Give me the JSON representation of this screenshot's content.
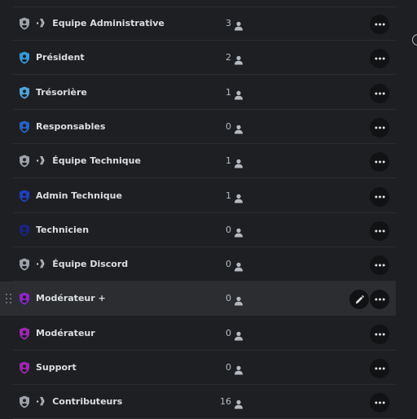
{
  "roles": [
    {
      "prefix": "·》",
      "name": "Equipe Administrative",
      "count": "3",
      "color": "#9ea3ab"
    },
    {
      "prefix": "",
      "name": "Président",
      "count": "2",
      "color": "#3498db"
    },
    {
      "prefix": "",
      "name": "Trésorière",
      "count": "1",
      "color": "#4fa3d9"
    },
    {
      "prefix": "",
      "name": "Responsables",
      "count": "0",
      "color": "#2563c9"
    },
    {
      "prefix": "·》",
      "name": "Équipe Technique",
      "count": "1",
      "color": "#9ea3ab"
    },
    {
      "prefix": "",
      "name": "Admin Technique",
      "count": "1",
      "color": "#1f3fbf"
    },
    {
      "prefix": "",
      "name": "Technicien",
      "count": "0",
      "color": "#1a237e"
    },
    {
      "prefix": "·》",
      "name": "Équipe Discord",
      "count": "0",
      "color": "#9ea3ab"
    },
    {
      "prefix": "",
      "name": "Modérateur +",
      "count": "0",
      "color": "#8e24c9"
    },
    {
      "prefix": "",
      "name": "Modérateur",
      "count": "0",
      "color": "#9c27b0"
    },
    {
      "prefix": "",
      "name": "Support",
      "count": "0",
      "color": "#9c27b0"
    },
    {
      "prefix": "·》",
      "name": "Contributeurs",
      "count": "16",
      "color": "#9ea3ab"
    }
  ],
  "hovered_index": 8,
  "icons": {
    "role": "shield-icon",
    "members": "person-icon",
    "more": "more-dots-icon",
    "edit": "pencil-icon",
    "drag": "drag-handle-icon"
  }
}
